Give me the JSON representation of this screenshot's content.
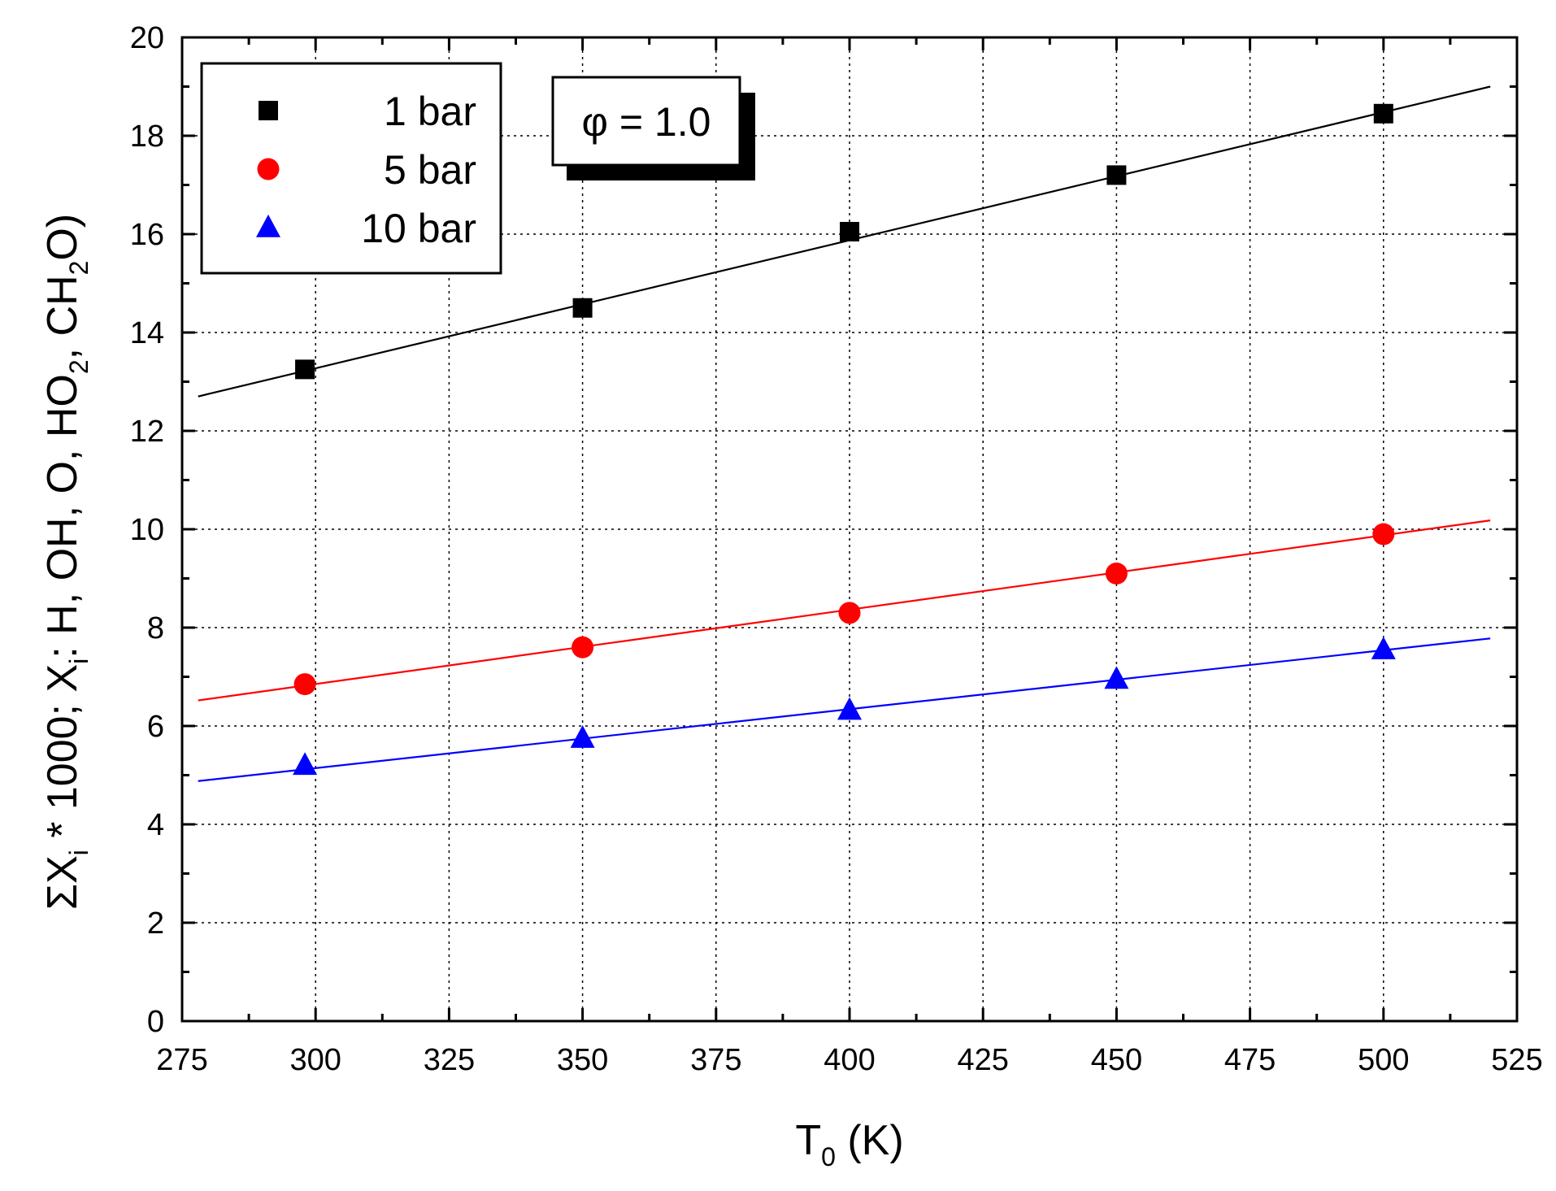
{
  "chart_data": {
    "type": "scatter",
    "title": "",
    "xlabel": {
      "main": "T",
      "sub": "0",
      "tail": " (K)"
    },
    "ylabel": [
      {
        "t": "ΣX",
        "sub": false
      },
      {
        "t": "i",
        "sub": true
      },
      {
        "t": " * 1000;    X",
        "sub": false
      },
      {
        "t": "i",
        "sub": true
      },
      {
        "t": ": H, OH, O, HO",
        "sub": false
      },
      {
        "t": "2",
        "sub": true
      },
      {
        "t": ", CH",
        "sub": false
      },
      {
        "t": "2",
        "sub": true
      },
      {
        "t": "O)",
        "sub": false
      }
    ],
    "xlim": [
      275,
      525
    ],
    "ylim": [
      0,
      20
    ],
    "xticks": [
      275,
      300,
      325,
      350,
      375,
      400,
      425,
      450,
      475,
      500,
      525
    ],
    "yticks": [
      0,
      2,
      4,
      6,
      8,
      10,
      12,
      14,
      16,
      18,
      20
    ],
    "x_tick_labels": [
      "275",
      "300",
      "325",
      "350",
      "375",
      "400",
      "425",
      "450",
      "475",
      "500",
      "525"
    ],
    "y_tick_labels": [
      "0",
      "2",
      "4",
      "6",
      "8",
      "10",
      "12",
      "14",
      "16",
      "18",
      "20"
    ],
    "grid": true,
    "legend_position": "top-left",
    "annotation": "φ = 1.0",
    "series": [
      {
        "name": "1 bar",
        "marker": "square",
        "color": "#000000",
        "x": [
          298,
          350,
          400,
          450,
          500
        ],
        "y": [
          13.25,
          14.5,
          16.05,
          17.2,
          18.45
        ],
        "fit": {
          "x": [
            278,
            520
          ],
          "y": [
            12.7,
            19.0
          ]
        }
      },
      {
        "name": "5 bar",
        "marker": "circle",
        "color": "#ff0000",
        "x": [
          298,
          350,
          400,
          450,
          500
        ],
        "y": [
          6.85,
          7.6,
          8.3,
          9.1,
          9.9
        ],
        "fit": {
          "x": [
            278,
            520
          ],
          "y": [
            6.52,
            10.18
          ]
        }
      },
      {
        "name": "10 bar",
        "marker": "triangle",
        "color": "#0000ff",
        "x": [
          298,
          350,
          400,
          450,
          500
        ],
        "y": [
          5.2,
          5.75,
          6.32,
          6.95,
          7.55
        ],
        "fit": {
          "x": [
            278,
            520
          ],
          "y": [
            4.88,
            7.78
          ]
        }
      }
    ]
  }
}
